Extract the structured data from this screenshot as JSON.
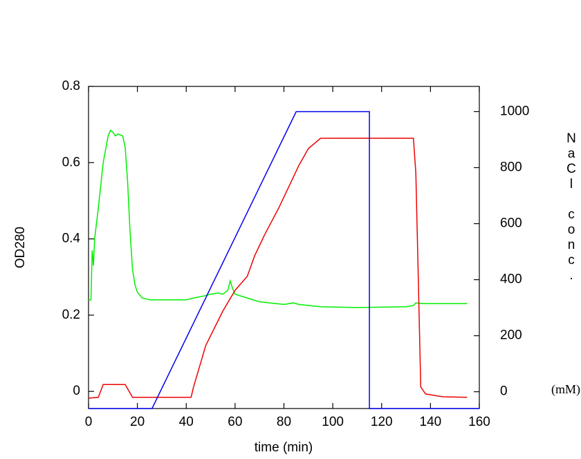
{
  "chart_data": {
    "type": "line",
    "xlabel": "time (min)",
    "ylabel": "OD280",
    "y2label": "NaCl conc.",
    "y2unit": "(mM)",
    "xlim": [
      0,
      160
    ],
    "xticks": [
      0,
      20,
      40,
      60,
      80,
      100,
      120,
      140,
      160
    ],
    "ylim": [
      -0.045,
      0.8
    ],
    "yticks": [
      0,
      0.2,
      0.4,
      0.6,
      0.8
    ],
    "y2lim": [
      -60,
      1090
    ],
    "y2ticks": [
      0,
      200,
      400,
      600,
      800,
      1000
    ],
    "series": [
      {
        "color": "#00ee00",
        "axis": "y",
        "x": [
          0,
          1,
          1.5,
          2,
          2.5,
          4,
          6,
          8,
          9,
          10,
          11,
          12,
          14,
          15,
          16,
          17,
          18,
          19,
          20,
          22,
          25,
          30,
          40,
          43,
          47,
          50,
          53,
          55,
          57,
          58,
          59,
          60,
          65,
          70,
          80,
          84,
          86,
          95,
          110,
          130,
          133,
          134,
          137,
          155
        ],
        "values": [
          0.24,
          0.24,
          0.37,
          0.33,
          0.4,
          0.48,
          0.6,
          0.67,
          0.685,
          0.68,
          0.67,
          0.675,
          0.67,
          0.64,
          0.55,
          0.42,
          0.32,
          0.28,
          0.26,
          0.245,
          0.24,
          0.24,
          0.24,
          0.245,
          0.25,
          0.255,
          0.258,
          0.255,
          0.265,
          0.29,
          0.27,
          0.255,
          0.245,
          0.235,
          0.228,
          0.232,
          0.228,
          0.222,
          0.22,
          0.222,
          0.225,
          0.232,
          0.23,
          0.23
        ]
      },
      {
        "color": "#ee0000",
        "axis": "y2",
        "x": [
          0,
          4,
          6,
          15,
          18,
          20,
          42,
          43,
          48,
          55,
          60,
          65,
          68,
          72,
          78,
          82,
          86,
          90,
          95,
          133,
          134,
          135,
          136,
          138,
          145,
          155
        ],
        "values": [
          -23,
          -20,
          26,
          26,
          -20,
          -20,
          -20,
          17,
          165,
          288,
          362,
          412,
          485,
          559,
          658,
          732,
          806,
          868,
          905,
          905,
          782,
          412,
          17,
          -8,
          -18,
          -20
        ]
      },
      {
        "color": "#0000ee",
        "axis": "y2",
        "x": [
          0,
          26,
          85,
          115,
          115,
          160
        ],
        "values": [
          -60,
          -60,
          1000,
          1000,
          -60,
          -60
        ]
      }
    ]
  }
}
